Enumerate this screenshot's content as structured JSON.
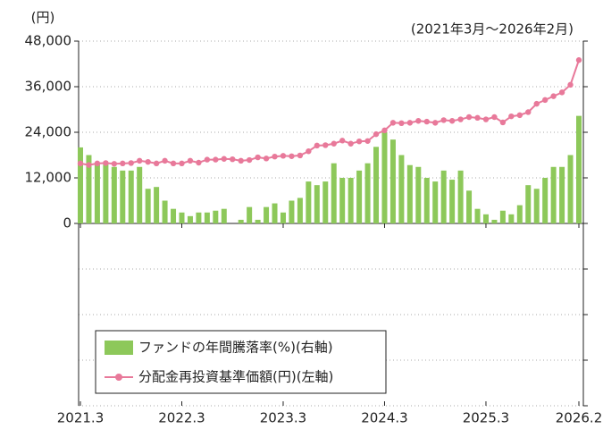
{
  "chart_data": {
    "type": "bar_line",
    "unit_left": "(円)",
    "period": "(2021年3月～2026年2月)",
    "categories": [
      "2021.3",
      null,
      null,
      null,
      null,
      null,
      null,
      null,
      null,
      null,
      null,
      null,
      "2022.3",
      null,
      null,
      null,
      null,
      null,
      null,
      null,
      null,
      null,
      null,
      null,
      "2023.3",
      null,
      null,
      null,
      null,
      null,
      null,
      null,
      null,
      null,
      null,
      null,
      "2024.3",
      null,
      null,
      null,
      null,
      null,
      null,
      null,
      null,
      null,
      null,
      null,
      "2025.3",
      null,
      null,
      null,
      null,
      null,
      null,
      null,
      null,
      null,
      null,
      "2026.2"
    ],
    "series": [
      {
        "name": "ファンドの年間騰落率(%)(右軸)",
        "type": "bar",
        "axis": "y2",
        "color": "#8dc85a",
        "values": [
          41.7,
          37.5,
          33,
          33,
          31,
          29,
          29,
          31,
          19,
          20,
          12.5,
          8,
          6,
          4,
          6,
          6,
          7,
          8,
          0,
          2,
          9,
          2,
          9,
          11,
          6,
          12.5,
          14,
          23,
          21,
          23,
          33,
          25,
          25,
          29,
          33,
          42,
          50,
          46,
          37.5,
          32,
          31,
          25,
          23,
          29,
          24,
          29,
          18,
          8,
          5,
          2,
          7,
          5,
          10,
          21,
          19,
          25,
          31,
          31,
          37.5,
          59
        ]
      },
      {
        "name": "分配金再投資基準価額(円)(左軸)",
        "type": "line",
        "color": "#e8799a",
        "values": [
          15800,
          15400,
          15800,
          15900,
          15700,
          15800,
          15900,
          16500,
          16200,
          15800,
          16500,
          15800,
          15800,
          16500,
          16000,
          16800,
          16800,
          17000,
          16900,
          16500,
          16700,
          17400,
          17100,
          17600,
          17800,
          17700,
          17900,
          19000,
          20500,
          20600,
          21000,
          21800,
          21000,
          21600,
          21700,
          23500,
          24500,
          26500,
          26400,
          26500,
          27000,
          26800,
          26500,
          27200,
          27000,
          27400,
          28000,
          27800,
          27400,
          28000,
          26600,
          28200,
          28500,
          29300,
          31500,
          32500,
          33500,
          34500,
          36500,
          43000
        ]
      }
    ],
    "ylim": [
      -48000,
      48000
    ],
    "yticks": [
      0,
      {
        "value": 12000,
        "label": "12,000"
      },
      {
        "value": 24000,
        "label": "24,000"
      },
      {
        "value": 36000,
        "label": "36,000"
      },
      {
        "value": 48000,
        "label": "48,000"
      }
    ],
    "y2lim": [
      -100,
      100
    ],
    "y2ticks": [
      -100,
      -75,
      -50,
      -25,
      0,
      25,
      50,
      75,
      100
    ],
    "grid": true
  }
}
